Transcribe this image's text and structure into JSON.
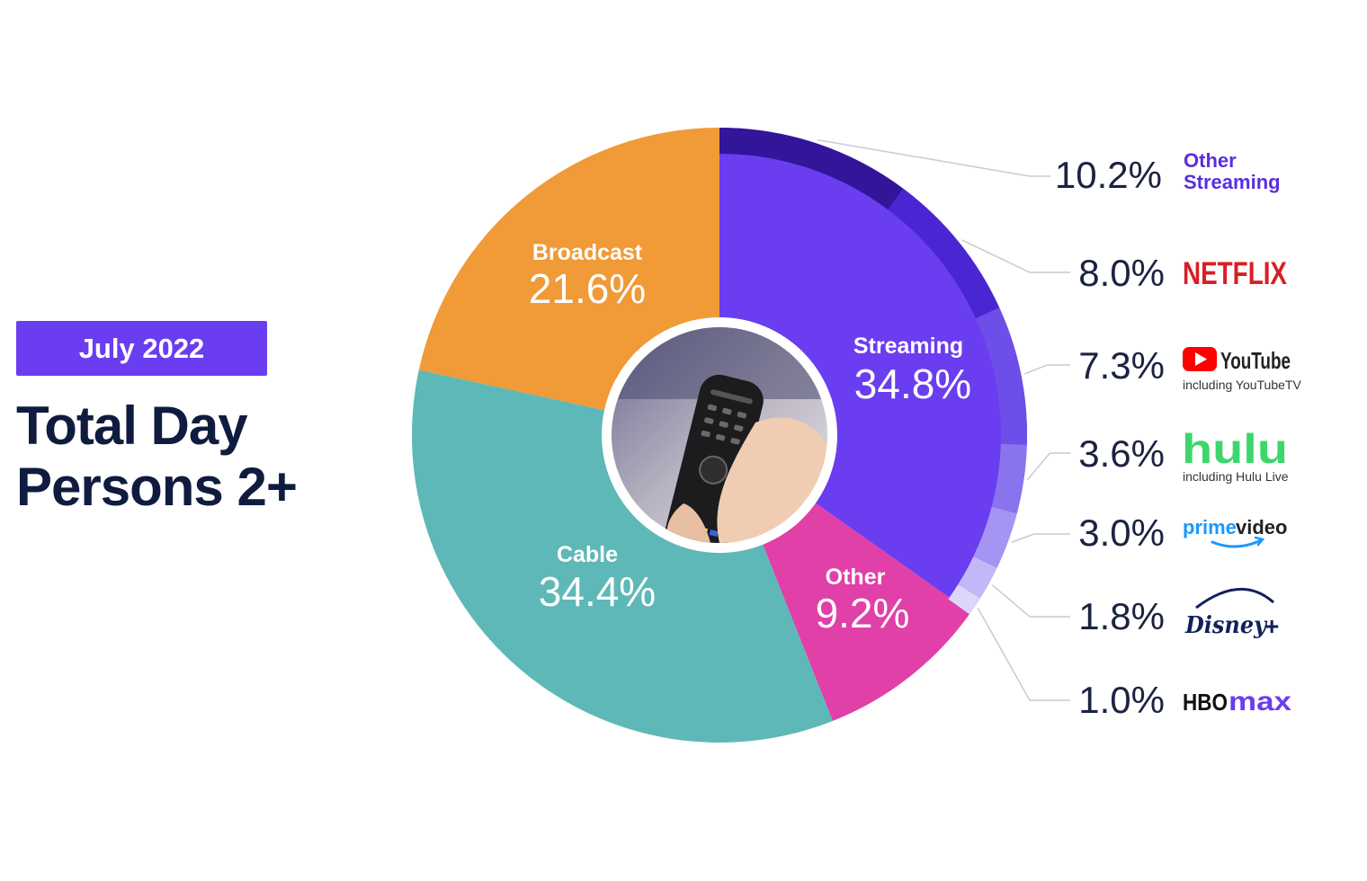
{
  "header": {
    "badge": "July 2022",
    "title_line1": "Total Day",
    "title_line2": "Persons 2+"
  },
  "chart_data": {
    "type": "pie",
    "categories": [
      "Streaming",
      "Other",
      "Cable",
      "Broadcast"
    ],
    "values": [
      34.8,
      9.2,
      34.4,
      21.6
    ],
    "labels": [
      "34.8%",
      "9.2%",
      "34.4%",
      "21.6%"
    ],
    "colors": [
      "#6a3df0",
      "#e040a8",
      "#5eb8b7",
      "#f09a38"
    ],
    "streaming_breakdown": {
      "categories": [
        "Other Streaming",
        "NETFLIX",
        "YouTube",
        "hulu",
        "prime video",
        "Disney+",
        "HBO max"
      ],
      "values": [
        10.2,
        8.0,
        7.3,
        3.6,
        3.0,
        1.8,
        1.0
      ],
      "labels": [
        "10.2%",
        "8.0%",
        "7.3%",
        "3.6%",
        "3.0%",
        "1.8%",
        "1.0%"
      ],
      "subtitles": [
        "",
        "",
        "including YouTubeTV",
        "including Hulu Live",
        "",
        "",
        ""
      ],
      "colors": [
        "#33159a",
        "#4a26d2",
        "#6e4ee8",
        "#8a73ef",
        "#a595f3",
        "#c2b8f7",
        "#dcd6fb"
      ]
    }
  },
  "brand_colors": {
    "other_streaming": "#5a2ee0",
    "netflix": "#d81f26",
    "youtube": "#ff0000",
    "hulu": "#3dd66b",
    "prime": "#1a98ff",
    "disney": "#11215c",
    "hbo": "#111111",
    "max": "#6a3df0"
  }
}
